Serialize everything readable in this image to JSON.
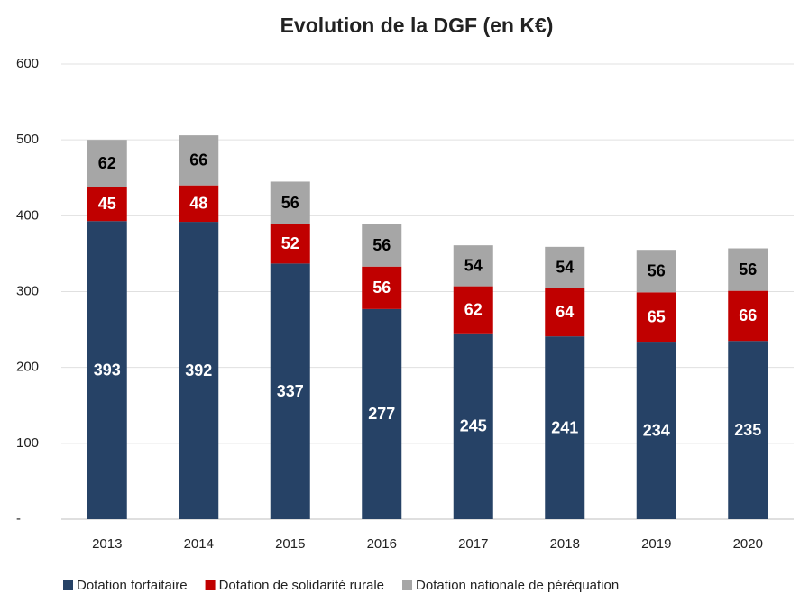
{
  "chart_data": {
    "type": "stacked_bar",
    "title": "Evolution de la DGF (en K€)",
    "categories": [
      "2013",
      "2014",
      "2015",
      "2016",
      "2017",
      "2018",
      "2019",
      "2020"
    ],
    "series": [
      {
        "name": "Dotation forfaitaire",
        "color": "#264266",
        "values": [
          393,
          392,
          337,
          277,
          245,
          241,
          234,
          235
        ]
      },
      {
        "name": "Dotation de solidarité rurale",
        "color": "#C00000",
        "values": [
          45,
          48,
          52,
          56,
          62,
          64,
          65,
          66
        ]
      },
      {
        "name": "Dotation nationale de péréquation",
        "color": "#A6A6A6",
        "values": [
          62,
          66,
          56,
          56,
          54,
          54,
          56,
          56
        ]
      }
    ],
    "ylim": [
      0,
      600
    ],
    "yticks": [
      {
        "value": 0,
        "label": "-"
      },
      100,
      200,
      300,
      400,
      500,
      600
    ],
    "grid": true,
    "legend": "bottom"
  }
}
